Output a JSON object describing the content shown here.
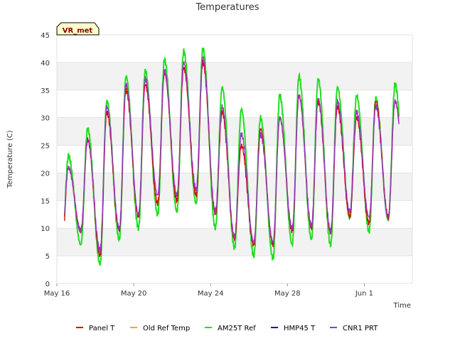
{
  "chart_data": {
    "type": "line",
    "title": "Temperatures",
    "xlabel": "Time",
    "ylabel": "Temperature (C)",
    "site_badge": "VR_met",
    "ylim": [
      0,
      45
    ],
    "yticks": [
      0,
      5,
      10,
      15,
      20,
      25,
      30,
      35,
      40,
      45
    ],
    "xlim": [
      "2023-05-16",
      "2023-06-03T12:00"
    ],
    "xticks": [
      {
        "date": "2023-05-16",
        "label": "May 16"
      },
      {
        "date": "2023-05-20",
        "label": "May 20"
      },
      {
        "date": "2023-05-24",
        "label": "May 24"
      },
      {
        "date": "2023-05-28",
        "label": "May 28"
      },
      {
        "date": "2023-06-01",
        "label": "Jun 1"
      }
    ],
    "grid": "horizontal alternating bands",
    "legend_position": "bottom",
    "daily_extremes": {
      "dates": [
        "May 16",
        "May 17",
        "May 18",
        "May 19",
        "May 20",
        "May 21",
        "May 22",
        "May 23",
        "May 24",
        "May 25",
        "May 26",
        "May 27",
        "May 28",
        "May 29",
        "May 30",
        "May 31",
        "Jun 1",
        "Jun 2",
        "Jun 3"
      ],
      "series": [
        {
          "name": "Panel T",
          "color": "#dd0000",
          "min": [
            6,
            9.5,
            5,
            9.5,
            12,
            14.5,
            15,
            16,
            12.5,
            8,
            7,
            7,
            9.5,
            10,
            9,
            12,
            11,
            12,
            14
          ],
          "max": [
            21,
            26,
            31,
            35,
            36,
            38,
            39,
            40,
            31,
            25,
            28,
            30,
            34,
            33,
            32,
            30,
            33,
            33,
            33
          ]
        },
        {
          "name": "Old Ref Temp",
          "color": "#ffa500",
          "min": [],
          "max": []
        },
        {
          "name": "AM25T Ref",
          "color": "#22dd22",
          "min": [
            4.5,
            7,
            3.5,
            8,
            10,
            12.5,
            13,
            14.5,
            10,
            6.5,
            5,
            4.5,
            7,
            8,
            7,
            12,
            9.5,
            11.5,
            11.5
          ],
          "max": [
            23,
            28,
            33,
            37.5,
            38.5,
            40.5,
            42,
            42.5,
            35.5,
            31.5,
            30,
            34,
            37.5,
            37,
            35.5,
            34,
            33.5,
            36,
            36
          ]
        },
        {
          "name": "HMP45 T",
          "color": "#0000cc",
          "min": [
            8,
            9,
            7,
            11,
            13,
            16,
            16.5,
            17.5,
            13.5,
            9,
            8,
            7.5,
            10.5,
            11,
            10,
            12,
            12,
            12,
            13
          ]
        },
        {
          "name": "CNR1 PRT",
          "color": "#9933cc",
          "min": [
            7,
            9.5,
            6,
            10,
            12.5,
            16,
            16,
            17,
            13,
            8.5,
            7.5,
            7.5,
            10,
            10.5,
            9.5,
            13,
            12,
            12,
            14.5
          ],
          "max": [
            21,
            26,
            32,
            36,
            37,
            38.5,
            40,
            41,
            32,
            27,
            27,
            30,
            34,
            33.5,
            33,
            31,
            32,
            33,
            33
          ]
        }
      ]
    }
  },
  "legend": [
    {
      "label": "Panel T",
      "color": "#dd0000"
    },
    {
      "label": "Old Ref Temp",
      "color": "#ffa500"
    },
    {
      "label": "AM25T Ref",
      "color": "#22dd22"
    },
    {
      "label": "HMP45 T",
      "color": "#0000cc"
    },
    {
      "label": "CNR1 PRT",
      "color": "#9933cc"
    }
  ]
}
